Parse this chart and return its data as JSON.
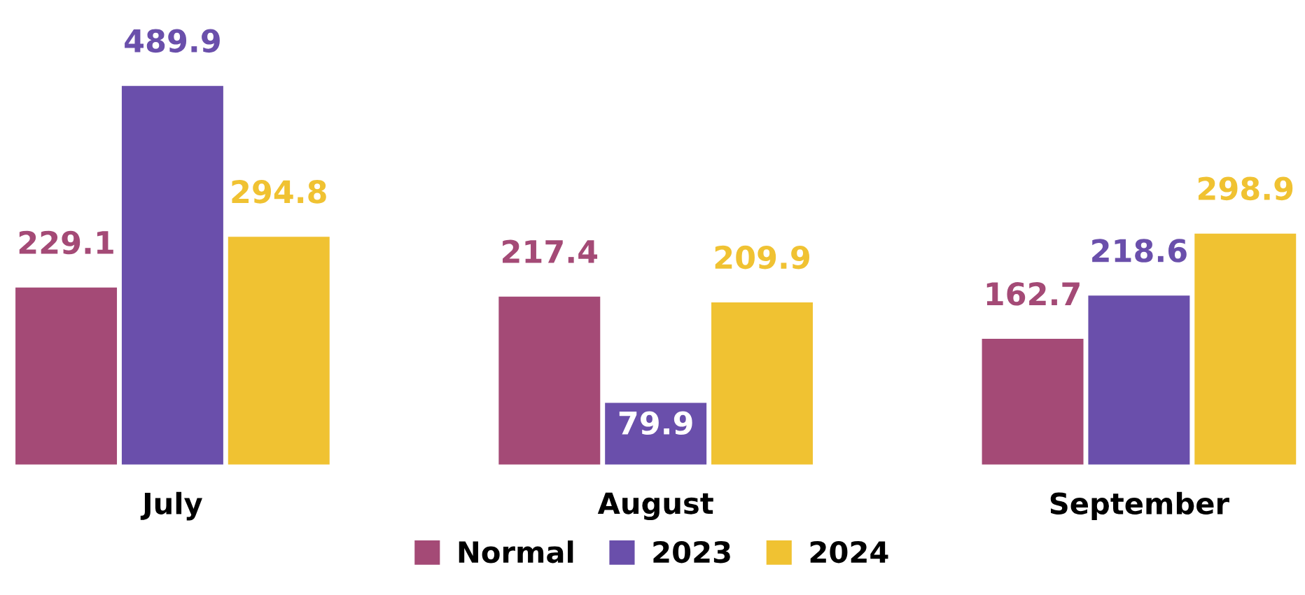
{
  "chart_data": {
    "type": "bar",
    "categories": [
      "July",
      "August",
      "September"
    ],
    "series": [
      {
        "name": "Normal",
        "color": "#a44a76",
        "values": [
          229.1,
          217.4,
          162.7
        ]
      },
      {
        "name": "2023",
        "color": "#6a4fab",
        "values": [
          489.9,
          79.9,
          218.6
        ]
      },
      {
        "name": "2024",
        "color": "#f0c232",
        "values": [
          294.8,
          209.9,
          298.9
        ]
      }
    ],
    "data_labels": true,
    "legend": "bottom",
    "grid": false
  }
}
